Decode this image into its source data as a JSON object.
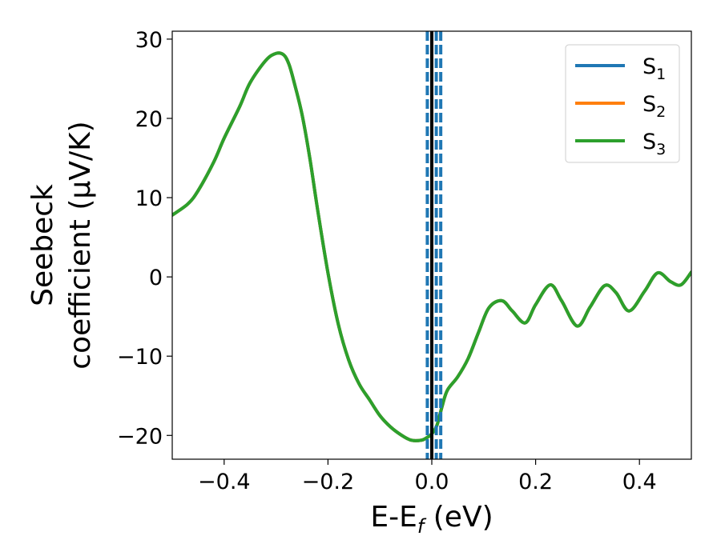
{
  "chart_data": {
    "type": "line",
    "xlabel": {
      "main": "E-E",
      "sub": "f",
      "rest": " (eV)"
    },
    "ylabel": {
      "line1": "Seebeck",
      "line2": "coefficient  (μV/K)"
    },
    "xlim": [
      -0.5,
      0.5
    ],
    "ylim": [
      -23,
      31
    ],
    "xticks": [
      -0.4,
      -0.2,
      0.0,
      0.2,
      0.4
    ],
    "xtick_labels": [
      "−0.4",
      "−0.2",
      "0.0",
      "0.2",
      "0.4"
    ],
    "yticks": [
      -20,
      -10,
      0,
      10,
      20,
      30
    ],
    "ytick_labels": [
      "−20",
      "−10",
      "0",
      "10",
      "20",
      "30"
    ],
    "grid": false,
    "legend_position": "top-right",
    "vlines": [
      {
        "x": 0.0,
        "color": "#000000",
        "style": "solid"
      },
      {
        "x": -0.0086,
        "color": "#1f77b4",
        "style": "dashed"
      },
      {
        "x": 0.0086,
        "color": "#1f77b4",
        "style": "dashed"
      },
      {
        "x": 0.0172,
        "color": "#1f77b4",
        "style": "dashed"
      }
    ],
    "series": [
      {
        "name": "S",
        "sub": "1",
        "color": "#1f77b4",
        "x": [
          -0.5,
          -0.47,
          -0.45,
          -0.42,
          -0.4,
          -0.37,
          -0.35,
          -0.32,
          -0.3,
          -0.285,
          -0.275,
          -0.265,
          -0.25,
          -0.235,
          -0.22,
          -0.2,
          -0.18,
          -0.16,
          -0.14,
          -0.12,
          -0.1,
          -0.08,
          -0.06,
          -0.04,
          -0.02,
          -0.01,
          0.0,
          0.01,
          0.02,
          0.03,
          0.05,
          0.07,
          0.09,
          0.11,
          0.135,
          0.155,
          0.18,
          0.2,
          0.228,
          0.25,
          0.28,
          0.305,
          0.333,
          0.355,
          0.38,
          0.41,
          0.435,
          0.46,
          0.48,
          0.5
        ],
        "y": [
          7.8,
          9.2,
          10.9,
          14.5,
          17.5,
          21.5,
          24.5,
          27.3,
          28.2,
          28.0,
          26.8,
          24.5,
          20.5,
          15.0,
          8.5,
          0.5,
          -6.0,
          -10.5,
          -13.5,
          -15.5,
          -17.5,
          -18.9,
          -19.9,
          -20.6,
          -20.6,
          -20.3,
          -19.8,
          -18.7,
          -16.3,
          -14.3,
          -12.6,
          -10.3,
          -7.0,
          -3.9,
          -3.0,
          -4.3,
          -5.8,
          -3.5,
          -1.0,
          -3.0,
          -6.2,
          -3.8,
          -1.1,
          -2.0,
          -4.3,
          -1.8,
          0.5,
          -0.6,
          -1.0,
          0.6
        ]
      },
      {
        "name": "S",
        "sub": "2",
        "color": "#ff7f0e",
        "x": [
          -0.5,
          -0.47,
          -0.45,
          -0.42,
          -0.4,
          -0.37,
          -0.35,
          -0.32,
          -0.3,
          -0.285,
          -0.275,
          -0.265,
          -0.25,
          -0.235,
          -0.22,
          -0.2,
          -0.18,
          -0.16,
          -0.14,
          -0.12,
          -0.1,
          -0.08,
          -0.06,
          -0.04,
          -0.02,
          -0.01,
          0.0,
          0.01,
          0.02,
          0.03,
          0.05,
          0.07,
          0.09,
          0.11,
          0.135,
          0.155,
          0.18,
          0.2,
          0.228,
          0.25,
          0.28,
          0.305,
          0.333,
          0.355,
          0.38,
          0.41,
          0.435,
          0.46,
          0.48,
          0.5
        ],
        "y": [
          7.8,
          9.2,
          10.9,
          14.5,
          17.5,
          21.5,
          24.5,
          27.3,
          28.2,
          28.0,
          26.8,
          24.5,
          20.5,
          15.0,
          8.5,
          0.5,
          -6.0,
          -10.5,
          -13.5,
          -15.5,
          -17.5,
          -18.9,
          -19.9,
          -20.6,
          -20.6,
          -20.3,
          -19.8,
          -18.7,
          -16.3,
          -14.3,
          -12.6,
          -10.3,
          -7.0,
          -3.9,
          -3.0,
          -4.3,
          -5.8,
          -3.5,
          -1.0,
          -3.0,
          -6.2,
          -3.8,
          -1.1,
          -2.0,
          -4.3,
          -1.8,
          0.5,
          -0.6,
          -1.0,
          0.6
        ]
      },
      {
        "name": "S",
        "sub": "3",
        "color": "#2ca02c",
        "x": [
          -0.5,
          -0.47,
          -0.45,
          -0.42,
          -0.4,
          -0.37,
          -0.35,
          -0.32,
          -0.3,
          -0.285,
          -0.275,
          -0.265,
          -0.25,
          -0.235,
          -0.22,
          -0.2,
          -0.18,
          -0.16,
          -0.14,
          -0.12,
          -0.1,
          -0.08,
          -0.06,
          -0.04,
          -0.02,
          -0.01,
          0.0,
          0.01,
          0.02,
          0.03,
          0.05,
          0.07,
          0.09,
          0.11,
          0.135,
          0.155,
          0.18,
          0.2,
          0.228,
          0.25,
          0.28,
          0.305,
          0.333,
          0.355,
          0.38,
          0.41,
          0.435,
          0.46,
          0.48,
          0.5
        ],
        "y": [
          7.8,
          9.2,
          10.9,
          14.5,
          17.5,
          21.5,
          24.5,
          27.3,
          28.2,
          28.0,
          26.8,
          24.5,
          20.5,
          15.0,
          8.5,
          0.5,
          -6.0,
          -10.5,
          -13.5,
          -15.5,
          -17.5,
          -18.9,
          -19.9,
          -20.6,
          -20.6,
          -20.3,
          -19.8,
          -18.7,
          -16.3,
          -14.3,
          -12.6,
          -10.3,
          -7.0,
          -3.9,
          -3.0,
          -4.3,
          -5.8,
          -3.5,
          -1.0,
          -3.0,
          -6.2,
          -3.8,
          -1.1,
          -2.0,
          -4.3,
          -1.8,
          0.5,
          -0.6,
          -1.0,
          0.6
        ]
      }
    ]
  }
}
